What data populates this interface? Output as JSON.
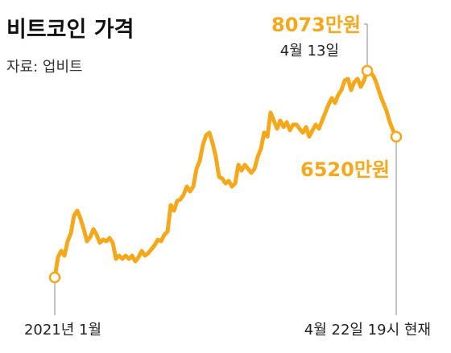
{
  "chart_data": {
    "type": "line",
    "title": "비트코인 가격",
    "subtitle": "자료: 업비트",
    "color": "#f5a81c",
    "categories": [
      "2021년 1월",
      null,
      null,
      null,
      null,
      null,
      null,
      null,
      null,
      null,
      null,
      null,
      null,
      null,
      null,
      null,
      null,
      null,
      null,
      null,
      null,
      null,
      null,
      null,
      null,
      null,
      null,
      null,
      null,
      null,
      null,
      null,
      null,
      null,
      null,
      null,
      null,
      null,
      null,
      null,
      null,
      null,
      null,
      null,
      null,
      null,
      null,
      null,
      null,
      null,
      null,
      null,
      null,
      null,
      null,
      null,
      null,
      null,
      null,
      null,
      null,
      null,
      null,
      null,
      null,
      null,
      null,
      null,
      null,
      null,
      null,
      null,
      null,
      null,
      null,
      null,
      null,
      null,
      null,
      null,
      null,
      null,
      null,
      null,
      null,
      null,
      null,
      null,
      null,
      null,
      null,
      null,
      null,
      null,
      null,
      null,
      null,
      "4월 13일",
      null,
      null,
      null,
      null,
      null,
      null,
      null,
      null,
      "4월 22일 19시 현재"
    ],
    "values": [
      3205,
      3679,
      3831,
      3717,
      4058,
      4247,
      4664,
      4778,
      4588,
      4342,
      4058,
      4152,
      4342,
      4209,
      4020,
      4096,
      4058,
      4134,
      4020,
      3641,
      3717,
      3641,
      3717,
      3641,
      3717,
      3584,
      3679,
      3831,
      3717,
      3774,
      3868,
      3963,
      4096,
      4058,
      4209,
      4285,
      4910,
      4778,
      5005,
      5043,
      5156,
      5346,
      5232,
      5346,
      5762,
      5952,
      6331,
      6558,
      6615,
      6368,
      6046,
      5573,
      5535,
      5421,
      5478,
      5346,
      5421,
      5857,
      5725,
      5857,
      5762,
      5668,
      5762,
      6046,
      6236,
      6615,
      6520,
      7088,
      6899,
      6709,
      6899,
      6747,
      6861,
      6672,
      6804,
      6804,
      6709,
      6615,
      6747,
      6520,
      6672,
      6804,
      6709,
      6899,
      7088,
      7278,
      7429,
      7315,
      7505,
      7619,
      7846,
      7884,
      7619,
      7808,
      7884,
      7694,
      7846,
      8073,
      8035,
      7941,
      7751,
      7505,
      7315,
      7126,
      6861,
      6672,
      6520
    ],
    "value_labels": [
      null,
      null,
      null,
      null,
      null,
      null,
      null,
      null,
      null,
      null,
      null,
      null,
      null,
      null,
      null,
      null,
      null,
      null,
      null,
      null,
      null,
      null,
      null,
      null,
      null,
      null,
      null,
      null,
      null,
      null,
      null,
      null,
      null,
      null,
      null,
      null,
      null,
      null,
      null,
      null,
      null,
      null,
      null,
      null,
      null,
      null,
      null,
      null,
      null,
      null,
      null,
      null,
      null,
      null,
      null,
      null,
      null,
      null,
      null,
      null,
      null,
      null,
      null,
      null,
      null,
      null,
      null,
      null,
      null,
      null,
      null,
      null,
      null,
      null,
      null,
      null,
      null,
      null,
      null,
      null,
      null,
      null,
      null,
      null,
      null,
      null,
      null,
      null,
      null,
      null,
      null,
      null,
      null,
      null,
      null,
      null,
      null,
      "8073만원",
      null,
      null,
      null,
      null,
      null,
      null,
      null,
      null,
      "6520만원"
    ]
  }
}
